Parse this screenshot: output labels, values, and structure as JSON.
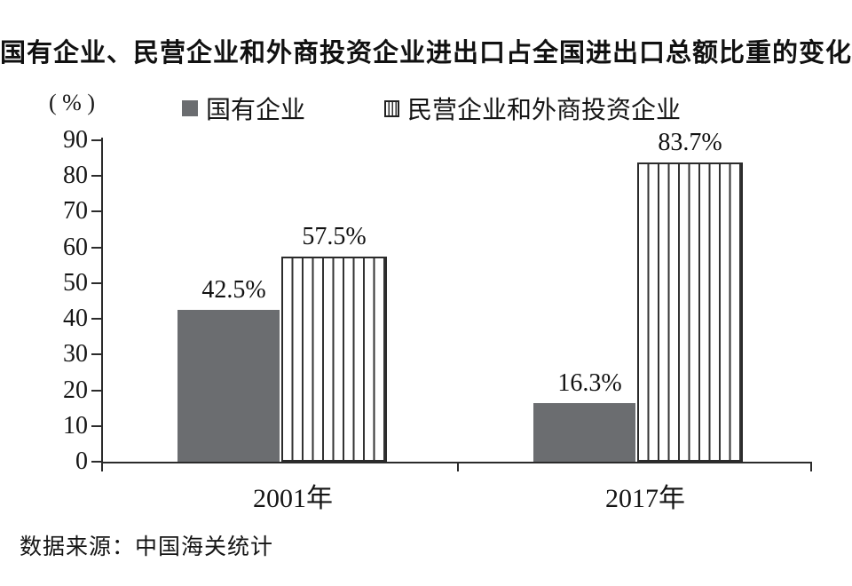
{
  "title": "国有企业、民营企业和外商投资企业进出口占全国进出口总额比重的变化",
  "y_axis_unit": "( % )",
  "legend": [
    {
      "label": "国有企业",
      "swatch": "solid-gray-square"
    },
    {
      "label": "民营企业和外商投资企业",
      "swatch": "vertical-striped-square"
    }
  ],
  "source": "数据来源：中国海关统计",
  "colors": {
    "solid_bar": "#6b6d70",
    "stripe_line": "#333333",
    "axis": "#2b2b2b"
  },
  "chart_data": {
    "type": "bar",
    "title": "国有企业、民营企业和外商投资企业进出口占全国进出口总额比重的变化",
    "categories": [
      "2001年",
      "2017年"
    ],
    "series": [
      {
        "name": "国有企业",
        "style": "solid",
        "values": [
          42.5,
          16.3
        ]
      },
      {
        "name": "民营企业和外商投资企业",
        "style": "striped",
        "values": [
          57.5,
          83.7
        ]
      }
    ],
    "data_labels": [
      [
        "42.5%",
        "57.5%"
      ],
      [
        "16.3%",
        "83.7%"
      ]
    ],
    "xlabel": "",
    "ylabel": "( % )",
    "ylim": [
      0,
      90
    ],
    "yticks": [
      0,
      10,
      20,
      30,
      40,
      50,
      60,
      70,
      80,
      90
    ],
    "grid": false,
    "legend_position": "top"
  }
}
